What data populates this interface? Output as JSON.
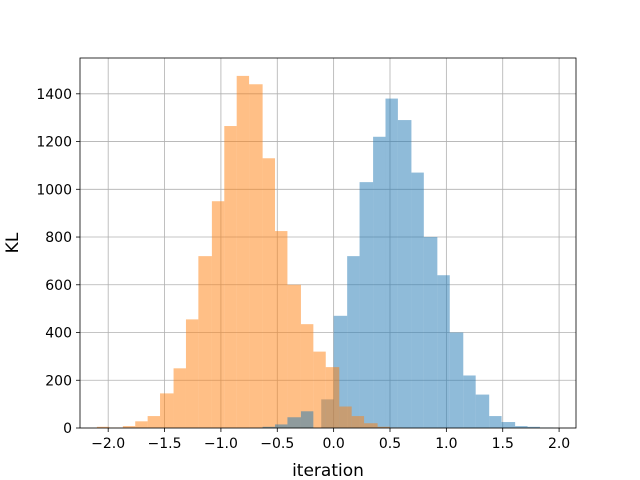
{
  "chart_data": {
    "type": "histogram",
    "title": "",
    "xlabel": "iteration",
    "ylabel": "KL",
    "xlim": [
      -2.25,
      2.15
    ],
    "ylim": [
      0,
      1550
    ],
    "xticks": [
      -2.0,
      -1.5,
      -1.0,
      -0.5,
      0.0,
      0.5,
      1.0,
      1.5,
      2.0
    ],
    "xtick_labels": [
      "−2.0",
      "−1.5",
      "−1.0",
      "−0.5",
      "0.0",
      "0.5",
      "1.0",
      "1.5",
      "2.0"
    ],
    "yticks": [
      0,
      200,
      400,
      600,
      800,
      1000,
      1200,
      1400
    ],
    "ytick_labels": [
      "0",
      "200",
      "400",
      "600",
      "800",
      "1000",
      "1200",
      "1400"
    ],
    "grid": true,
    "alpha": 0.5,
    "series": [
      {
        "color": "#1f77b4",
        "bin_edges": [
          -0.11,
          0.0,
          0.12,
          0.23,
          0.35,
          0.46,
          0.57,
          0.69,
          0.8,
          0.92,
          1.03,
          1.15,
          1.26,
          1.38,
          1.49,
          1.61,
          1.72,
          1.83,
          1.95
        ],
        "counts": [
          120,
          470,
          720,
          1030,
          1220,
          1380,
          1290,
          1070,
          800,
          640,
          400,
          220,
          140,
          50,
          25,
          8,
          5,
          2
        ]
      },
      {
        "color": "#ff7f0e",
        "bin_edges": [
          -2.1,
          -1.99,
          -1.87,
          -1.76,
          -1.65,
          -1.54,
          -1.42,
          -1.31,
          -1.2,
          -1.08,
          -0.97,
          -0.86,
          -0.75,
          -0.63,
          -0.52,
          -0.41,
          -0.29,
          -0.18,
          -0.07,
          0.05,
          0.16,
          0.27,
          0.39,
          0.5,
          0.61
        ],
        "counts": [
          5,
          2,
          8,
          28,
          50,
          145,
          250,
          455,
          720,
          950,
          1265,
          1475,
          1440,
          1130,
          825,
          600,
          435,
          320,
          255,
          90,
          50,
          20,
          5,
          2
        ]
      },
      {
        "color": "#1f77b4",
        "bin_edges": [
          -0.63,
          -0.52,
          -0.41,
          -0.29,
          -0.18
        ],
        "counts": [
          5,
          15,
          45,
          70,
          95
        ]
      }
    ]
  }
}
